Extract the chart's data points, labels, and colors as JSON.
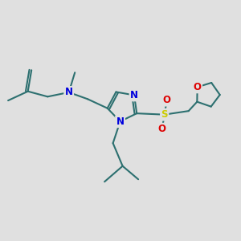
{
  "bg_color": "#e0e0e0",
  "bond_color": "#2d7070",
  "bond_width": 1.5,
  "N_color": "#0000dd",
  "O_color": "#dd0000",
  "S_color": "#cccc00",
  "font_size_atom": 8.5,
  "fig_width": 3.0,
  "fig_height": 3.0,
  "dpi": 100,
  "xlim": [
    0,
    10
  ],
  "ylim": [
    0,
    10
  ]
}
